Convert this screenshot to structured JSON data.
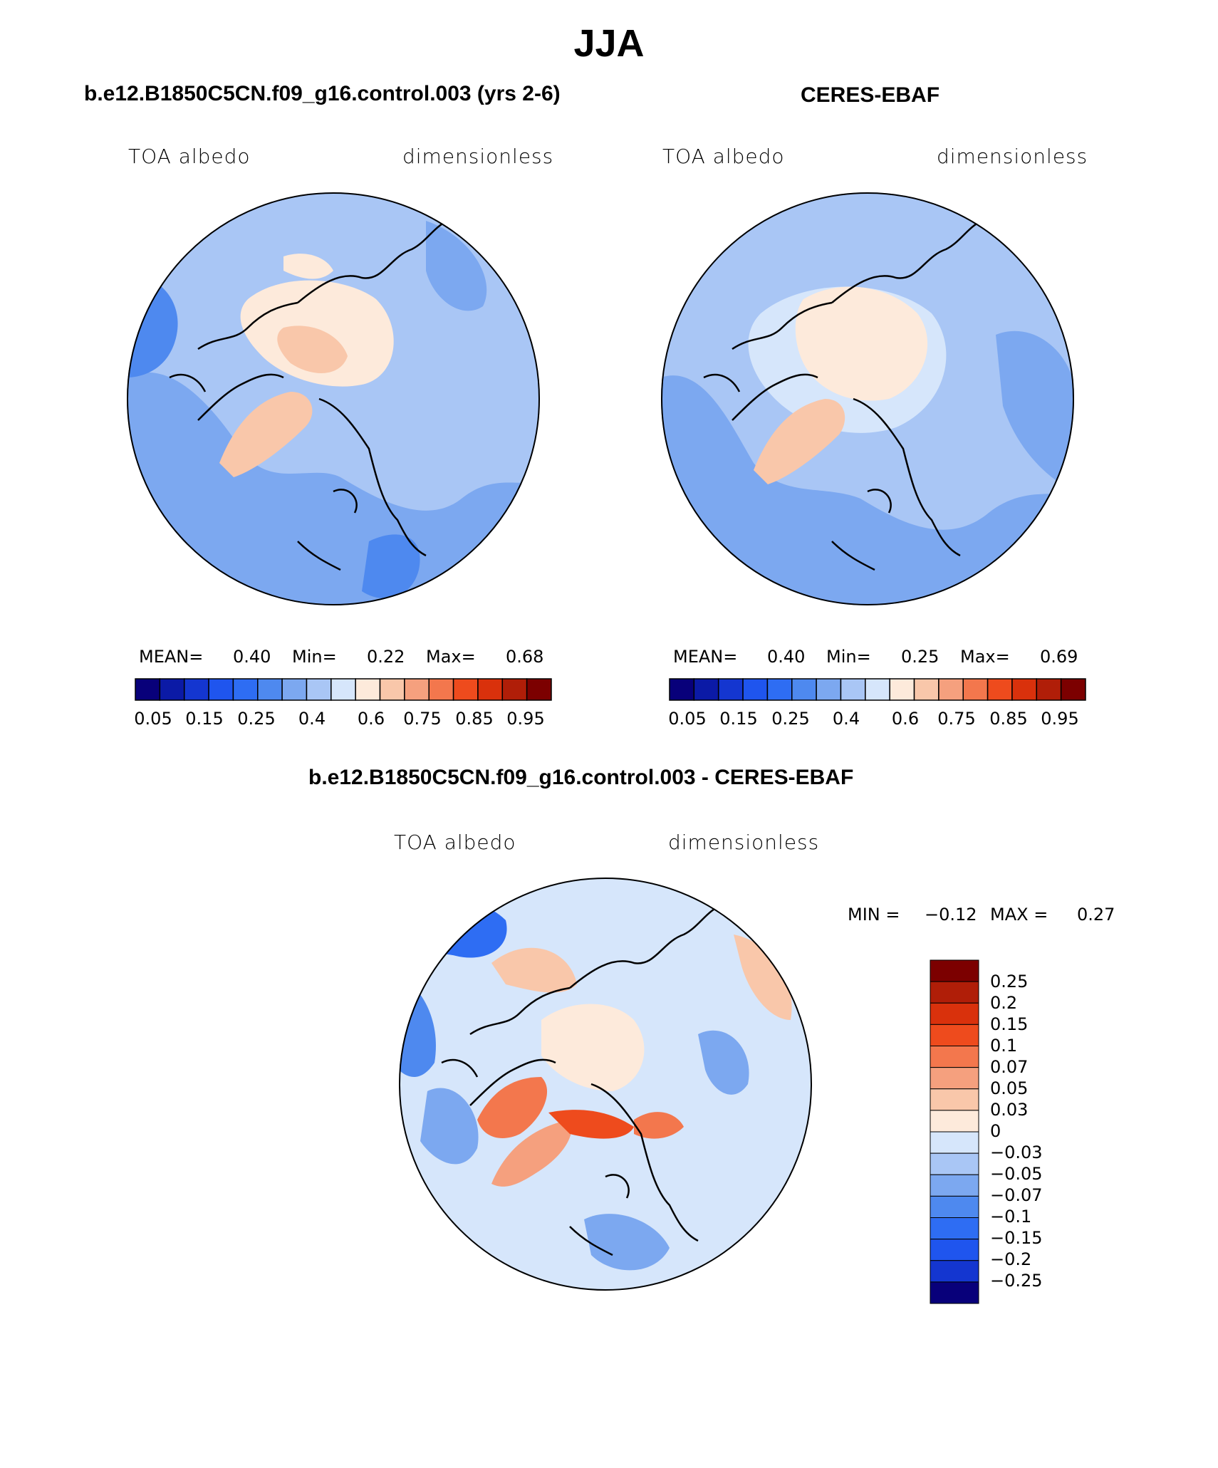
{
  "title": "JJA",
  "colors": {
    "scale": [
      "#08007a",
      "#0b1aa6",
      "#1436d0",
      "#1f55ee",
      "#2e6df3",
      "#4e89ef",
      "#7ca8f0",
      "#a9c6f5",
      "#d6e6fb",
      "#fdeadb",
      "#f9c7aa",
      "#f5a07e",
      "#f3774d",
      "#ee4b1d",
      "#d9310c",
      "#b01e08",
      "#7c0000"
    ],
    "coast": "#000000",
    "border": "#000000"
  },
  "panels": [
    {
      "subtitle": "b.e12.B1850C5CN.f09_g16.control.003 (yrs 2-6)",
      "left_label": "TOA albedo",
      "right_label": "dimensionless",
      "stats": {
        "mean_label": "MEAN=",
        "mean": "0.40",
        "min_label": "Min=",
        "min": "0.22",
        "max_label": "Max=",
        "max": "0.68"
      },
      "colorbar_ticks": [
        "0.05",
        "0.15",
        "0.25",
        "0.4",
        "0.6",
        "0.75",
        "0.85",
        "0.95"
      ]
    },
    {
      "subtitle": "CERES-EBAF",
      "left_label": "TOA albedo",
      "right_label": "dimensionless",
      "stats": {
        "mean_label": "MEAN=",
        "mean": "0.40",
        "min_label": "Min=",
        "min": "0.25",
        "max_label": "Max=",
        "max": "0.69"
      },
      "colorbar_ticks": [
        "0.05",
        "0.15",
        "0.25",
        "0.4",
        "0.6",
        "0.75",
        "0.85",
        "0.95"
      ]
    }
  ],
  "diff": {
    "subtitle": "b.e12.B1850C5CN.f09_g16.control.003 - CERES-EBAF",
    "left_label": "TOA albedo",
    "right_label": "dimensionless",
    "stats": {
      "min_label": "MIN =",
      "min": "−0.12",
      "max_label": "MAX =",
      "max": "0.27"
    },
    "colorbar_levels": [
      "0.25",
      "0.2",
      "0.15",
      "0.1",
      "0.07",
      "0.05",
      "0.03",
      "0",
      "−0.03",
      "−0.05",
      "−0.07",
      "−0.1",
      "−0.15",
      "−0.2",
      "−0.25"
    ],
    "colorbar_colors": [
      "#7c0000",
      "#b01e08",
      "#d9310c",
      "#ee4b1d",
      "#f3774d",
      "#f5a07e",
      "#f9c7aa",
      "#fdeadb",
      "#d6e6fb",
      "#a9c6f5",
      "#7ca8f0",
      "#4e89ef",
      "#2e6df3",
      "#1f55ee",
      "#1436d0",
      "#08007a"
    ]
  }
}
